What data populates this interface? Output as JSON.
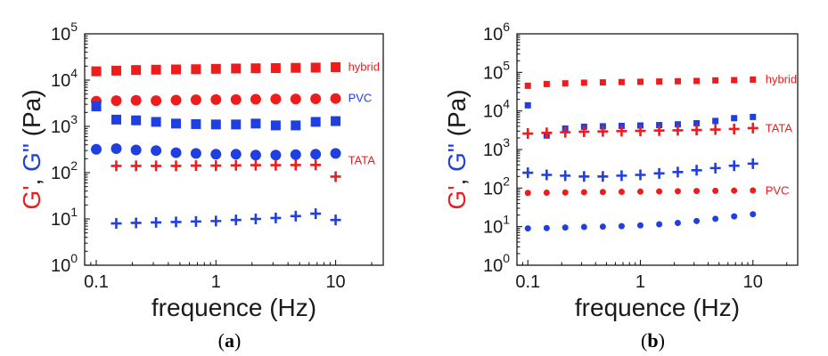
{
  "colors": {
    "red": "#ee1c1c",
    "blue": "#1f3fe0",
    "axis": "#1a1a1a"
  },
  "chart_data": [
    {
      "type": "scatter",
      "panel_label": "a",
      "xlabel": "frequence (Hz)",
      "ylabel_parts": [
        {
          "text": "G'",
          "color": "red"
        },
        {
          "text": ", ",
          "color": "axis"
        },
        {
          "text": "G\"",
          "color": "blue"
        },
        {
          "text": " (Pa)",
          "color": "axis"
        }
      ],
      "x_scale": "log",
      "y_scale": "log",
      "xlim": [
        0.08,
        25
      ],
      "ylim": [
        1,
        100000
      ],
      "x_ticks": [
        {
          "value": 0.1,
          "label": "0.1"
        },
        {
          "value": 1,
          "label": "1"
        },
        {
          "value": 10,
          "label": "10"
        }
      ],
      "y_ticks": [
        {
          "value": 1,
          "base": "10",
          "exp": "0"
        },
        {
          "value": 10,
          "base": "10",
          "exp": "1"
        },
        {
          "value": 100,
          "base": "10",
          "exp": "2"
        },
        {
          "value": 1000,
          "base": "10",
          "exp": "3"
        },
        {
          "value": 10000,
          "base": "10",
          "exp": "4"
        },
        {
          "value": 100000,
          "base": "10",
          "exp": "5"
        }
      ],
      "grid": false,
      "series": [
        {
          "name": "hybrid",
          "label_value": 19000,
          "color": "red",
          "marker": "square",
          "x": [
            0.1,
            0.147,
            0.215,
            0.316,
            0.464,
            0.681,
            1,
            1.47,
            2.15,
            3.16,
            4.64,
            6.81,
            10
          ],
          "y": [
            15500,
            16000,
            16500,
            16800,
            17000,
            17200,
            17500,
            17800,
            18000,
            18200,
            18400,
            18600,
            19000
          ]
        },
        {
          "name": "",
          "color": "red",
          "marker": "circle",
          "x": [
            0.1,
            0.147,
            0.215,
            0.316,
            0.464,
            0.681,
            1,
            1.47,
            2.15,
            3.16,
            4.64,
            6.81,
            10
          ],
          "y": [
            3500,
            3600,
            3650,
            3600,
            3700,
            3750,
            3800,
            3800,
            3850,
            3900,
            3900,
            3950,
            4000
          ]
        },
        {
          "name": "PVC",
          "label_value": 4000,
          "color": "blue",
          "marker": "square",
          "x": [
            0.1,
            0.147,
            0.215,
            0.316,
            0.464,
            0.681,
            1,
            1.47,
            2.15,
            3.16,
            4.64,
            6.81,
            10
          ],
          "y": [
            2700,
            1400,
            1350,
            1250,
            1150,
            1120,
            1100,
            1100,
            1150,
            1050,
            1050,
            1250,
            1300
          ]
        },
        {
          "name": "",
          "color": "blue",
          "marker": "circle",
          "x": [
            0.1,
            0.147,
            0.215,
            0.316,
            0.464,
            0.681,
            1,
            1.47,
            2.15,
            3.16,
            4.64,
            6.81,
            10
          ],
          "y": [
            320,
            330,
            310,
            300,
            270,
            260,
            250,
            250,
            240,
            240,
            245,
            250,
            260
          ]
        },
        {
          "name": "TATA",
          "label_value": 180,
          "color": "red",
          "marker": "plus",
          "x": [
            0.147,
            0.215,
            0.316,
            0.464,
            0.681,
            1,
            1.47,
            2.15,
            3.16,
            4.64,
            6.81,
            10
          ],
          "y": [
            140,
            140,
            140,
            140,
            142,
            142,
            144,
            145,
            145,
            146,
            147,
            82
          ]
        },
        {
          "name": "",
          "color": "blue",
          "marker": "plus",
          "x": [
            0.147,
            0.215,
            0.316,
            0.464,
            0.681,
            1,
            1.47,
            2.15,
            3.16,
            4.64,
            6.81,
            10
          ],
          "y": [
            8,
            8.2,
            8.4,
            8.6,
            8.8,
            9,
            9.5,
            10,
            10.5,
            11.5,
            13,
            9.5
          ]
        }
      ]
    },
    {
      "type": "scatter",
      "panel_label": "b",
      "xlabel": "frequence (Hz)",
      "ylabel_parts": [
        {
          "text": "G'",
          "color": "red"
        },
        {
          "text": ", ",
          "color": "axis"
        },
        {
          "text": "G\"",
          "color": "blue"
        },
        {
          "text": " (Pa)",
          "color": "axis"
        }
      ],
      "x_scale": "log",
      "y_scale": "log",
      "xlim": [
        0.08,
        25
      ],
      "ylim": [
        1,
        1000000
      ],
      "x_ticks": [
        {
          "value": 0.1,
          "label": "0.1"
        },
        {
          "value": 1,
          "label": "1"
        },
        {
          "value": 10,
          "label": "10"
        }
      ],
      "y_ticks": [
        {
          "value": 1,
          "base": "10",
          "exp": "0"
        },
        {
          "value": 10,
          "base": "10",
          "exp": "1"
        },
        {
          "value": 100,
          "base": "10",
          "exp": "2"
        },
        {
          "value": 1000,
          "base": "10",
          "exp": "3"
        },
        {
          "value": 10000,
          "base": "10",
          "exp": "4"
        },
        {
          "value": 100000,
          "base": "10",
          "exp": "5"
        },
        {
          "value": 1000000,
          "base": "10",
          "exp": "6"
        }
      ],
      "grid": false,
      "series": [
        {
          "name": "hybrid",
          "label_value": 65000,
          "color": "red",
          "marker": "square-small",
          "x": [
            0.1,
            0.147,
            0.215,
            0.316,
            0.464,
            0.681,
            1,
            1.47,
            2.15,
            3.16,
            4.64,
            6.81,
            10
          ],
          "y": [
            45000,
            50000,
            52000,
            54000,
            55000,
            56000,
            57000,
            58000,
            59000,
            60000,
            62000,
            63000,
            65000
          ]
        },
        {
          "name": "",
          "color": "blue",
          "marker": "square-small",
          "x": [
            0.1,
            0.147,
            0.215,
            0.316,
            0.464,
            0.681,
            1,
            1.47,
            2.15,
            3.16,
            4.64,
            6.81,
            10
          ],
          "y": [
            14000,
            2300,
            3500,
            3900,
            4000,
            4100,
            4200,
            4300,
            4500,
            4800,
            5500,
            6500,
            7000
          ]
        },
        {
          "name": "TATA",
          "label_value": 3500,
          "color": "red",
          "marker": "plus",
          "x": [
            0.1,
            0.147,
            0.215,
            0.316,
            0.464,
            0.681,
            1,
            1.47,
            2.15,
            3.16,
            4.64,
            6.81,
            10
          ],
          "y": [
            2600,
            2700,
            2800,
            2900,
            2950,
            3000,
            3050,
            3100,
            3150,
            3200,
            3300,
            3400,
            3600
          ]
        },
        {
          "name": "",
          "color": "blue",
          "marker": "plus",
          "x": [
            0.1,
            0.147,
            0.215,
            0.316,
            0.464,
            0.681,
            1,
            1.47,
            2.15,
            3.16,
            4.64,
            6.81,
            10
          ],
          "y": [
            250,
            220,
            210,
            200,
            200,
            210,
            220,
            240,
            260,
            290,
            330,
            380,
            430
          ]
        },
        {
          "name": "PVC",
          "label_value": 85,
          "color": "red",
          "marker": "circle-small",
          "x": [
            0.1,
            0.147,
            0.215,
            0.316,
            0.464,
            0.681,
            1,
            1.47,
            2.15,
            3.16,
            4.64,
            6.81,
            10
          ],
          "y": [
            75,
            76,
            77,
            78,
            79,
            80,
            81,
            82,
            83,
            84,
            85,
            86,
            87
          ]
        },
        {
          "name": "",
          "color": "blue",
          "marker": "circle-small",
          "x": [
            0.1,
            0.147,
            0.215,
            0.316,
            0.464,
            0.681,
            1,
            1.47,
            2.15,
            3.16,
            4.64,
            6.81,
            10
          ],
          "y": [
            9,
            9.2,
            9.5,
            9.8,
            10,
            10.3,
            10.8,
            11.5,
            12.5,
            14,
            16,
            18.5,
            21
          ]
        }
      ]
    }
  ]
}
